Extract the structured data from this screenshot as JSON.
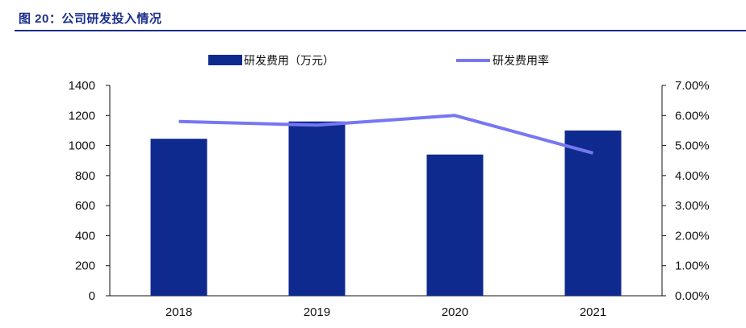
{
  "figure": {
    "title": "图 20：公司研发投入情况"
  },
  "colors": {
    "bar": "#0f2a8f",
    "line": "#7777f2",
    "title": "#1b2f8c",
    "axis": "#111111"
  },
  "chart_data": {
    "type": "bar",
    "categories": [
      "2018",
      "2019",
      "2020",
      "2021"
    ],
    "series": [
      {
        "name": "研发费用（万元）",
        "type": "bar",
        "axis": "left",
        "values": [
          1045,
          1160,
          940,
          1100
        ]
      },
      {
        "name": "研发费用率",
        "type": "line",
        "axis": "right",
        "values": [
          5.8,
          5.68,
          6.0,
          4.75
        ]
      }
    ],
    "y_left": {
      "min": 0,
      "max": 1400,
      "step": 200,
      "tick_labels": [
        "0",
        "200",
        "400",
        "600",
        "800",
        "1000",
        "1200",
        "1400"
      ]
    },
    "y_right": {
      "min": 0,
      "max": 7,
      "step": 1,
      "tick_labels": [
        "0.00%",
        "1.00%",
        "2.00%",
        "3.00%",
        "4.00%",
        "5.00%",
        "6.00%",
        "7.00%"
      ]
    },
    "legend_position": "top-center",
    "grid": false
  }
}
